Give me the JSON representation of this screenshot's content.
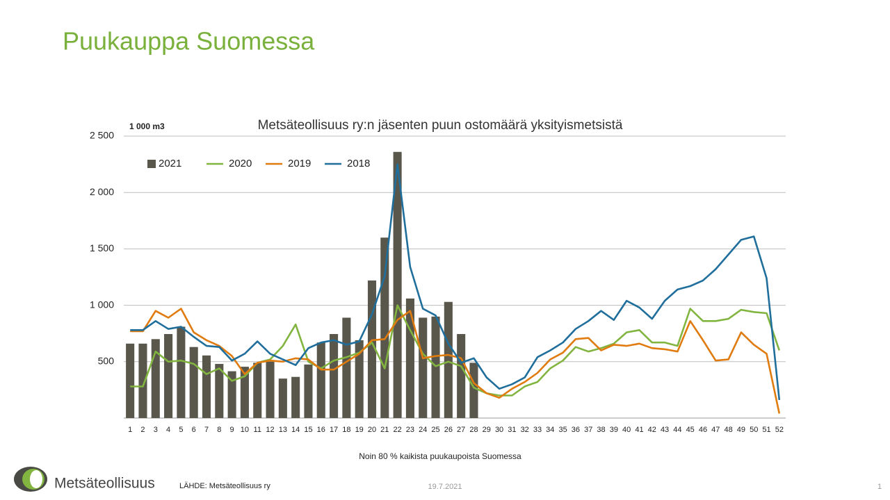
{
  "title": "Puukauppa Suomessa",
  "footer": {
    "logo": "Metsäteollisuus",
    "source": "LÄHDE:  Metsäteollisuus ry",
    "date": "19.7.2021",
    "page": "1"
  },
  "chart_data": {
    "type": "bar_line",
    "title": "Metsäteollisuus ry:n jäsenten puun ostomäärä yksityismetsistä",
    "y_unit": "1 000 m3",
    "x_label": "Noin 80 % kaikista puukaupoista Suomessa",
    "categories": [
      "1",
      "2",
      "3",
      "4",
      "5",
      "6",
      "7",
      "8",
      "9",
      "10",
      "11",
      "12",
      "13",
      "14",
      "15",
      "16",
      "17",
      "18",
      "19",
      "20",
      "21",
      "22",
      "23",
      "24",
      "25",
      "26",
      "27",
      "28",
      "29",
      "30",
      "31",
      "32",
      "33",
      "34",
      "35",
      "36",
      "37",
      "38",
      "39",
      "40",
      "41",
      "42",
      "43",
      "44",
      "45",
      "46",
      "47",
      "48",
      "49",
      "50",
      "51",
      "52"
    ],
    "ylim": [
      0,
      2500
    ],
    "yticks": [
      500,
      {
        "value": 1000,
        "label": "1 000"
      },
      {
        "value": 1500,
        "label": "1 500"
      },
      {
        "value": 2000,
        "label": "2 000"
      },
      {
        "value": 2500,
        "label": "2 500"
      }
    ],
    "grid": true,
    "legend": "top-left",
    "series": [
      {
        "name": "2021",
        "kind": "bar",
        "color": "#59574b",
        "values": [
          660,
          660,
          700,
          745,
          810,
          630,
          555,
          480,
          415,
          455,
          490,
          500,
          350,
          365,
          475,
          670,
          745,
          890,
          690,
          1220,
          1600,
          2360,
          1060,
          890,
          900,
          1030,
          745,
          490,
          null,
          null,
          null,
          null,
          null,
          null,
          null,
          null,
          null,
          null,
          null,
          null,
          null,
          null,
          null,
          null,
          null,
          null,
          null,
          null,
          null,
          null,
          null,
          null
        ]
      },
      {
        "name": "2020",
        "kind": "line",
        "color": "#82b440",
        "values": [
          280,
          280,
          590,
          500,
          510,
          480,
          390,
          440,
          330,
          370,
          490,
          520,
          640,
          830,
          500,
          440,
          510,
          540,
          580,
          670,
          440,
          1000,
          780,
          570,
          460,
          500,
          460,
          270,
          220,
          200,
          200,
          280,
          320,
          440,
          510,
          630,
          590,
          620,
          660,
          760,
          780,
          670,
          670,
          640,
          970,
          860,
          860,
          880,
          960,
          940,
          930,
          600
        ]
      },
      {
        "name": "2019",
        "kind": "line",
        "color": "#e07b10",
        "values": [
          770,
          770,
          950,
          890,
          970,
          760,
          690,
          640,
          550,
          390,
          490,
          510,
          500,
          530,
          520,
          430,
          430,
          500,
          570,
          690,
          700,
          870,
          950,
          530,
          550,
          560,
          530,
          310,
          220,
          180,
          260,
          320,
          400,
          520,
          580,
          700,
          710,
          600,
          650,
          640,
          660,
          620,
          610,
          590,
          860,
          690,
          510,
          520,
          760,
          650,
          570,
          40
        ]
      },
      {
        "name": "2018",
        "kind": "line",
        "color": "#1f6e9c",
        "values": [
          780,
          780,
          860,
          790,
          810,
          720,
          640,
          630,
          510,
          570,
          680,
          570,
          520,
          470,
          620,
          670,
          690,
          650,
          680,
          920,
          1260,
          2250,
          1340,
          970,
          910,
          660,
          490,
          530,
          360,
          260,
          300,
          360,
          540,
          600,
          670,
          790,
          860,
          950,
          870,
          1040,
          980,
          880,
          1040,
          1140,
          1170,
          1220,
          1320,
          1450,
          1580,
          1610,
          1240,
          160
        ]
      }
    ]
  }
}
